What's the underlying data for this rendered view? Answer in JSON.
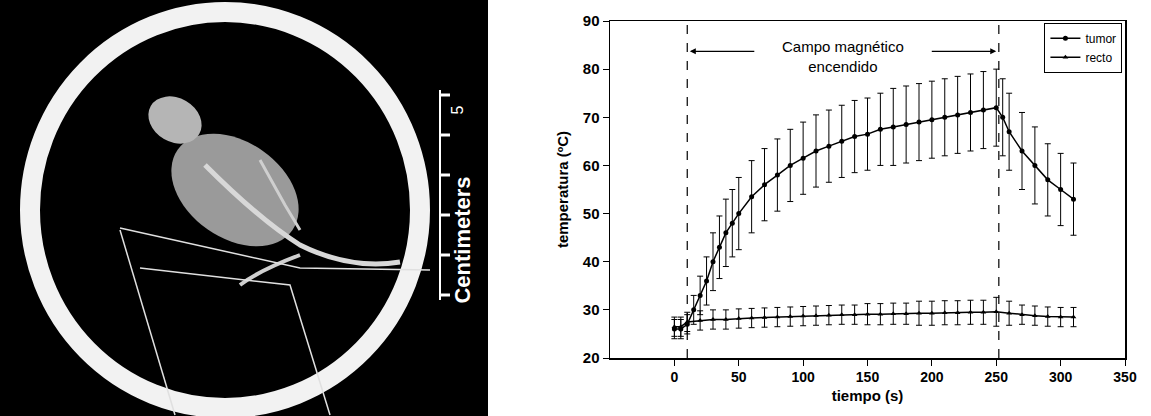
{
  "image": {
    "scale_label": "Centimeters",
    "scale_mark": "5"
  },
  "chart_data": {
    "type": "line",
    "x_label": "tiempo (s)",
    "y_label": "temperatura (ºC)",
    "annotation": {
      "lines": [
        "Campo magnético",
        "encendido"
      ],
      "vlines": [
        10,
        252
      ]
    },
    "xlim": [
      -50,
      350
    ],
    "xticks": [
      0,
      50,
      100,
      150,
      200,
      250,
      300,
      350
    ],
    "ylim": [
      20,
      90
    ],
    "yticks": [
      20,
      30,
      40,
      50,
      60,
      70,
      80,
      90
    ],
    "grid": false,
    "legend": "top right",
    "series": [
      {
        "name": "tumor",
        "color": "#000000",
        "marker": "circle",
        "line_style": "solid",
        "x": [
          0,
          5,
          10,
          15,
          20,
          25,
          30,
          35,
          40,
          45,
          50,
          60,
          70,
          80,
          90,
          100,
          110,
          120,
          130,
          140,
          150,
          160,
          170,
          180,
          190,
          200,
          210,
          220,
          230,
          240,
          250,
          255,
          260,
          270,
          280,
          290,
          300,
          310
        ],
        "values": [
          26,
          26,
          27,
          30,
          33,
          36,
          40,
          43,
          46,
          48,
          50,
          53.5,
          56,
          58,
          60,
          61.5,
          63,
          64,
          65,
          66,
          66.5,
          67.5,
          68,
          68.5,
          69,
          69.5,
          70,
          70.5,
          71,
          71.5,
          72,
          70,
          67,
          63,
          60,
          57,
          55,
          53
        ],
        "errors": [
          2,
          2,
          2,
          3,
          4,
          5,
          6,
          6.5,
          7,
          7,
          7.5,
          7.5,
          7.5,
          7.5,
          7.5,
          7.5,
          7.5,
          7.5,
          7.5,
          7.5,
          7.5,
          7.5,
          8,
          8,
          8,
          8,
          8,
          8,
          8,
          8,
          8,
          8,
          8,
          8,
          8,
          7.5,
          7.5,
          7.5
        ]
      },
      {
        "name": "recto",
        "color": "#000000",
        "marker": "triangle-up",
        "line_style": "solid",
        "x": [
          0,
          5,
          10,
          20,
          30,
          40,
          50,
          60,
          70,
          80,
          90,
          100,
          110,
          120,
          130,
          140,
          150,
          160,
          170,
          180,
          190,
          200,
          210,
          220,
          230,
          240,
          250,
          260,
          270,
          280,
          290,
          300,
          310
        ],
        "values": [
          26.5,
          26.5,
          27.5,
          27.8,
          28,
          28,
          28.2,
          28.3,
          28.4,
          28.5,
          28.6,
          28.7,
          28.8,
          28.9,
          29,
          29,
          29.1,
          29.1,
          29.2,
          29.2,
          29.3,
          29.3,
          29.4,
          29.4,
          29.5,
          29.5,
          29.6,
          29.3,
          29,
          28.8,
          28.6,
          28.5,
          28.5
        ],
        "errors": [
          2,
          2,
          2,
          2,
          2,
          2,
          2,
          2,
          2,
          2,
          2,
          2,
          2,
          2,
          2,
          2,
          2.2,
          2.2,
          2.2,
          2.2,
          2.5,
          2.5,
          2.5,
          2.5,
          2.5,
          2.5,
          3,
          2.5,
          2,
          2,
          2,
          2,
          2
        ]
      }
    ]
  }
}
